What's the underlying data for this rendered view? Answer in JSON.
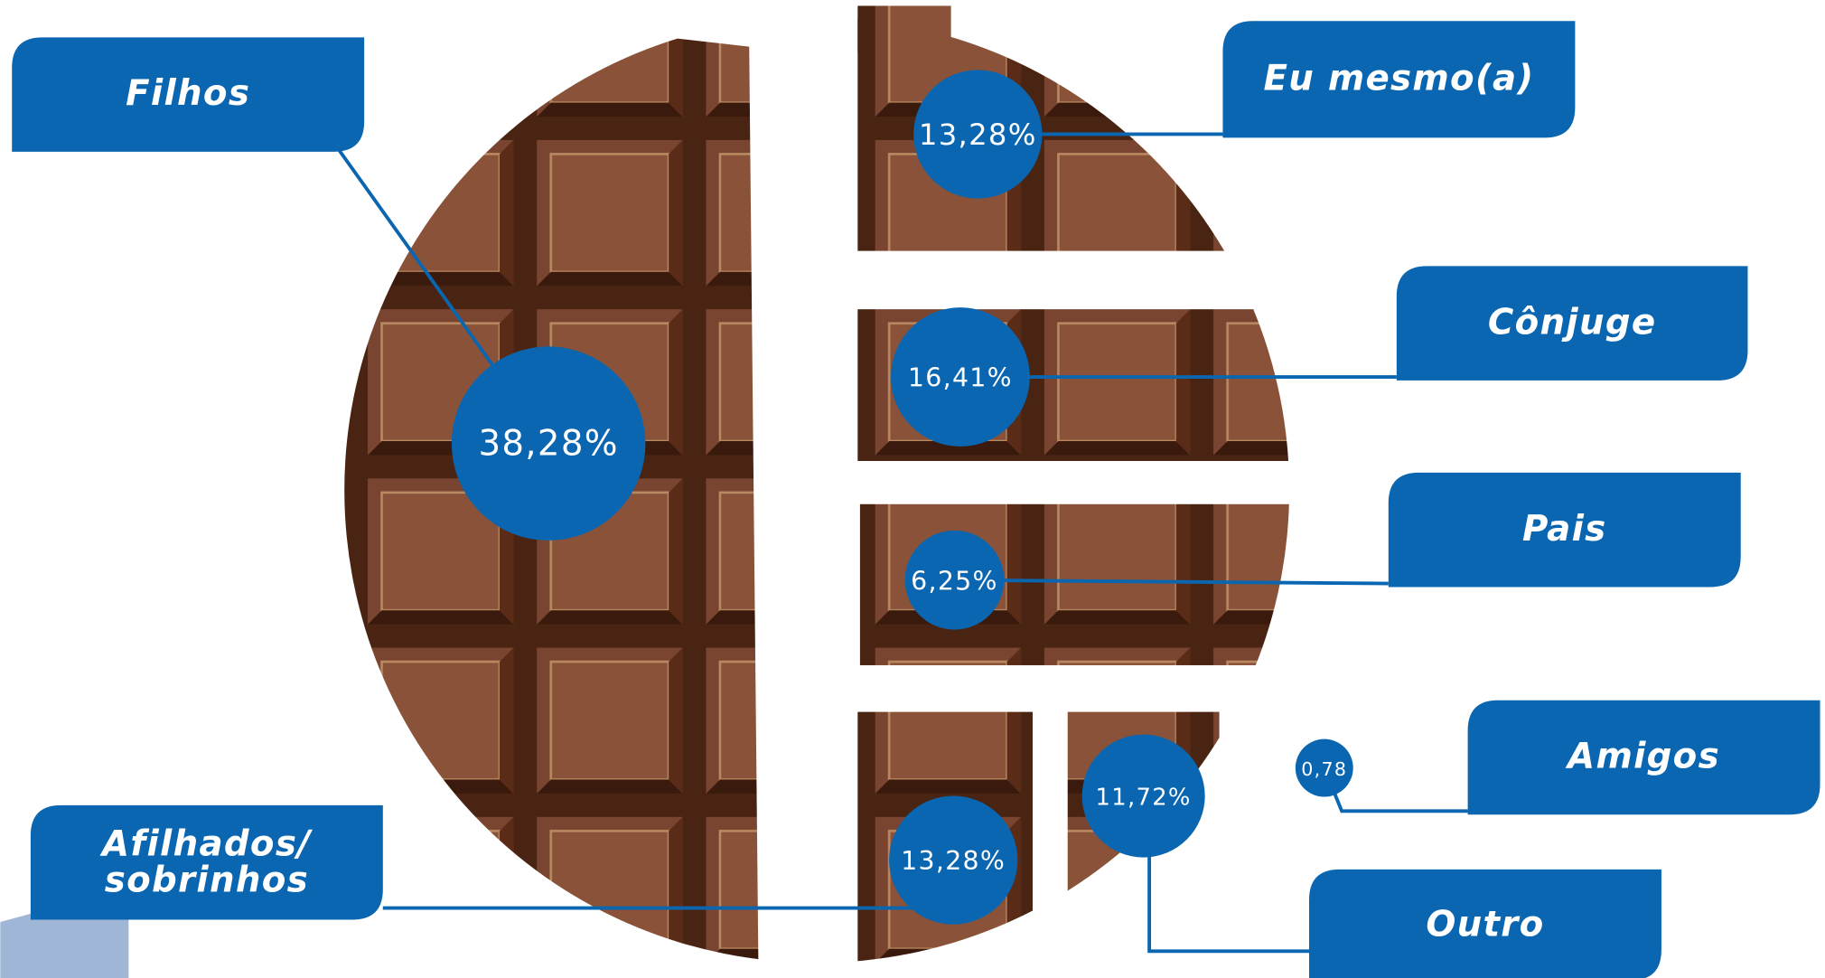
{
  "chart_data": {
    "type": "pie",
    "categories": [
      "Filhos",
      "Eu mesmo(a)",
      "Cônjuge",
      "Pais",
      "Afilhados/\nsobrinhos",
      "Outro",
      "Amigos"
    ],
    "values": [
      38.28,
      13.28,
      16.41,
      6.25,
      13.28,
      11.72,
      0.78
    ],
    "value_labels": [
      "38,28%",
      "13,28%",
      "16,41%",
      "6,25%",
      "13,28%",
      "11,72%",
      "0,78"
    ],
    "color": "#0a66b0"
  }
}
